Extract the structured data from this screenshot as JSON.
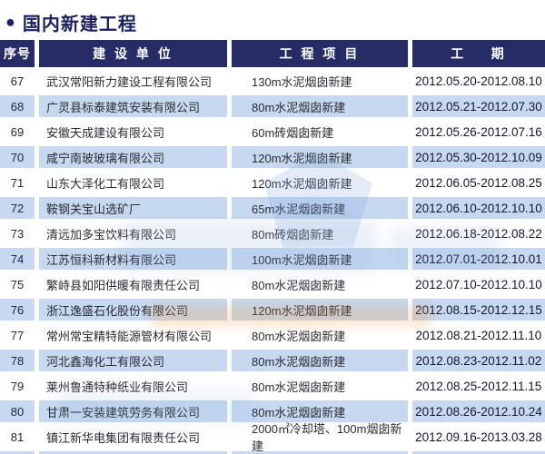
{
  "page": {
    "title": "国内新建工程",
    "bullet_icon": "●"
  },
  "colors": {
    "header_bg": "#252c66",
    "stripe_bg": "#c6d9f1",
    "title_color": "#1c2160"
  },
  "table": {
    "columns": [
      {
        "key": "no",
        "label": "序号"
      },
      {
        "key": "company",
        "label": "建 设 单 位"
      },
      {
        "key": "project",
        "label": "工 程 项 目"
      },
      {
        "key": "period",
        "label": "工    期"
      }
    ],
    "rows": [
      {
        "no": "67",
        "company": "武汉常阳新力建设工程有限公司",
        "project": "130m水泥烟囱新建",
        "period": "2012.05.20-2012.08.10"
      },
      {
        "no": "68",
        "company": "广灵县标泰建筑安装有限公司",
        "project": "80m水泥烟囱新建",
        "period": "2012.05.21-2012.07.30"
      },
      {
        "no": "69",
        "company": "安徽天成建设有限公司",
        "project": "60m砖烟囱新建",
        "period": "2012.05.26-2012.07.16"
      },
      {
        "no": "70",
        "company": "咸宁南玻玻璃有限公司",
        "project": "120m水泥烟囱新建",
        "period": "2012.05.30-2012.10.09"
      },
      {
        "no": "71",
        "company": "山东大泽化工有限公司",
        "project": "120m水泥烟囱新建",
        "period": "2012.06.05-2012.08.25"
      },
      {
        "no": "72",
        "company": "鞍钢关宝山选矿厂",
        "project": "65m水泥烟囱新建",
        "period": "2012.06.10-2012.10.10"
      },
      {
        "no": "73",
        "company": "清远加多宝饮料有限公司",
        "project": "80m砖烟囱新建",
        "period": "2012.06.18-2012.08.22"
      },
      {
        "no": "74",
        "company": "江苏恒科新材料有限公司",
        "project": "100m水泥烟囱新建",
        "period": "2012.07.01-2012.10.01"
      },
      {
        "no": "75",
        "company": "繁峙县如阳供暖有限责任公司",
        "project": "80m水泥烟囱新建",
        "period": "2012.07.10-2012.10.10"
      },
      {
        "no": "76",
        "company": "浙江逸盛石化股份有限公司",
        "project": "120m水泥烟囱新建",
        "period": "2012.08.15-2012.12.15"
      },
      {
        "no": "77",
        "company": "常州常宝精特能源管材有限公司",
        "project": "80m水泥烟囱新建",
        "period": "2012.08.21-2012.11.10"
      },
      {
        "no": "78",
        "company": "河北鑫海化工有限公司",
        "project": "80m水泥烟囱新建",
        "period": "2012.08.23-2012.11.02"
      },
      {
        "no": "79",
        "company": "莱州鲁通特种纸业有限公司",
        "project": "80m水泥烟囱新建",
        "period": "2012.08.25-2012.11.15"
      },
      {
        "no": "80",
        "company": "甘肃一安装建筑劳务有限公司",
        "project": "80m水泥烟囱新建",
        "period": "2012.08.26-2012.10.24"
      },
      {
        "no": "81",
        "company": "镇江新华电集团有限责任公司",
        "project": "2000㎡冷却塔、100m烟囱新建",
        "period": "2012.09.16-2013.03.28"
      }
    ]
  }
}
